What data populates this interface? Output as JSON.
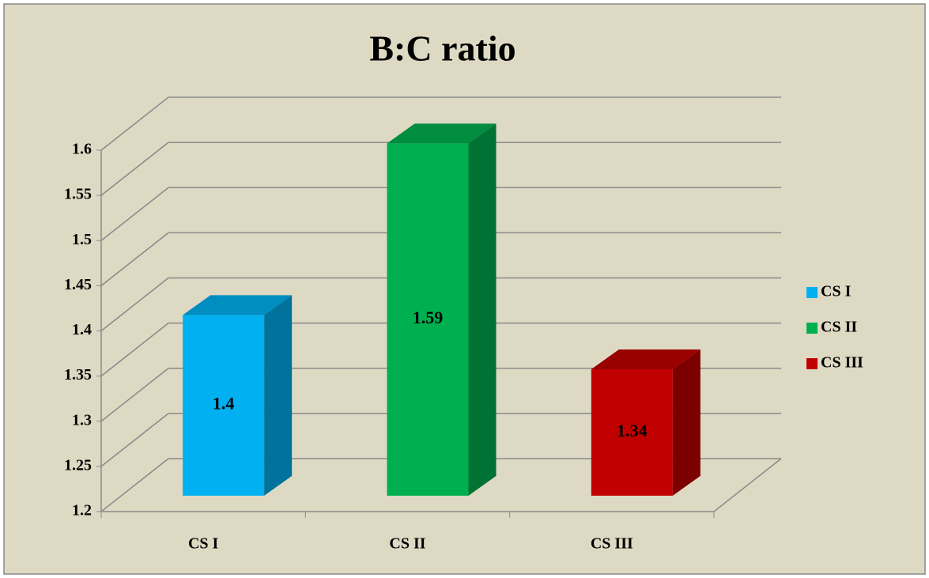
{
  "chart_data": {
    "type": "bar3d",
    "title": "B:C ratio",
    "categories": [
      "CS I",
      "CS II",
      "CS III"
    ],
    "values": [
      1.4,
      1.59,
      1.34
    ],
    "colors": [
      "#00b0f0",
      "#00b050",
      "#c00000"
    ],
    "ylim": [
      1.2,
      1.6
    ],
    "yticks": [
      1.2,
      1.25,
      1.3,
      1.35,
      1.4,
      1.45,
      1.5,
      1.55,
      1.6
    ],
    "grid": true,
    "legend": "right"
  }
}
